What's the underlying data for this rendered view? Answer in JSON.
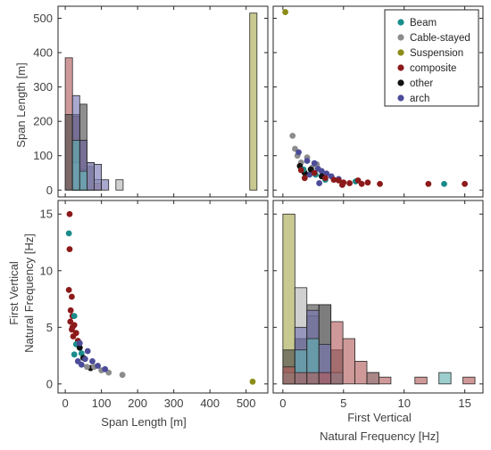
{
  "chart_data": [
    {
      "panel": "top-left",
      "type": "histogram",
      "xlim": [
        -20,
        560
      ],
      "ylim": [
        -20,
        535
      ],
      "x_ticks": [
        "0",
        "100",
        "200",
        "300",
        "400",
        "500"
      ],
      "x_tick_labels_shown": false,
      "y_ticks": [
        "0",
        "100",
        "200",
        "300",
        "400",
        "500"
      ],
      "ylabel": "Span Length [m]",
      "bin_width": 20,
      "bars": [
        {
          "series": "composite",
          "left": 0,
          "count": 385
        },
        {
          "series": "composite",
          "left": 20,
          "count": 215
        },
        {
          "series": "composite",
          "left": 40,
          "count": 145
        },
        {
          "series": "composite",
          "left": 60,
          "count": 65
        },
        {
          "series": "composite",
          "left": 80,
          "count": 20
        },
        {
          "series": "other",
          "left": 0,
          "count": 220
        },
        {
          "series": "other",
          "left": 20,
          "count": 220
        },
        {
          "series": "other",
          "left": 40,
          "count": 250
        },
        {
          "series": "other",
          "left": 60,
          "count": 70
        },
        {
          "series": "Cable-stayed",
          "left": 20,
          "count": 80
        },
        {
          "series": "Cable-stayed",
          "left": 40,
          "count": 60
        },
        {
          "series": "Cable-stayed",
          "left": 60,
          "count": 80
        },
        {
          "series": "Cable-stayed",
          "left": 80,
          "count": 30
        },
        {
          "series": "Cable-stayed",
          "left": 140,
          "count": 30
        },
        {
          "series": "arch",
          "left": 20,
          "count": 275
        },
        {
          "series": "arch",
          "left": 40,
          "count": 145
        },
        {
          "series": "arch",
          "left": 60,
          "count": 80
        },
        {
          "series": "arch",
          "left": 80,
          "count": 75
        },
        {
          "series": "arch",
          "left": 100,
          "count": 30
        },
        {
          "series": "Beam",
          "left": 20,
          "count": 145
        },
        {
          "series": "Beam",
          "left": 40,
          "count": 55
        },
        {
          "series": "Suspension",
          "left": 510,
          "count": 515
        }
      ]
    },
    {
      "panel": "top-right",
      "type": "scatter",
      "xlim": [
        -0.8,
        16.5
      ],
      "ylim": [
        -20,
        535
      ],
      "x_ticks": [
        "0",
        "5",
        "10",
        "15"
      ],
      "y_ticks": [
        "0",
        "100",
        "200",
        "300",
        "400",
        "500"
      ],
      "tick_labels_shown": false,
      "points": [
        {
          "series": "Suspension",
          "x": 0.2,
          "y": 518
        },
        {
          "series": "Cable-stayed",
          "x": 0.8,
          "y": 158
        },
        {
          "series": "Cable-stayed",
          "x": 1.0,
          "y": 120
        },
        {
          "series": "Cable-stayed",
          "x": 1.2,
          "y": 100
        },
        {
          "series": "Cable-stayed",
          "x": 1.5,
          "y": 80
        },
        {
          "series": "Cable-stayed",
          "x": 2.4,
          "y": 65
        },
        {
          "series": "Cable-stayed",
          "x": 2.8,
          "y": 75
        },
        {
          "series": "Cable-stayed",
          "x": 2.0,
          "y": 95
        },
        {
          "series": "arch",
          "x": 1.3,
          "y": 110
        },
        {
          "series": "arch",
          "x": 2.0,
          "y": 85
        },
        {
          "series": "arch",
          "x": 2.6,
          "y": 78
        },
        {
          "series": "arch",
          "x": 2.9,
          "y": 62
        },
        {
          "series": "arch",
          "x": 3.2,
          "y": 55
        },
        {
          "series": "arch",
          "x": 3.6,
          "y": 48
        },
        {
          "series": "arch",
          "x": 4.0,
          "y": 40
        },
        {
          "series": "arch",
          "x": 2.2,
          "y": 45
        },
        {
          "series": "arch",
          "x": 4.6,
          "y": 32
        },
        {
          "series": "arch",
          "x": 3.0,
          "y": 20
        },
        {
          "series": "other",
          "x": 1.4,
          "y": 70
        },
        {
          "series": "other",
          "x": 2.3,
          "y": 60
        },
        {
          "series": "other",
          "x": 3.2,
          "y": 40
        },
        {
          "series": "other",
          "x": 1.8,
          "y": 50
        },
        {
          "series": "Beam",
          "x": 1.7,
          "y": 60
        },
        {
          "series": "Beam",
          "x": 2.7,
          "y": 45
        },
        {
          "series": "Beam",
          "x": 3.5,
          "y": 30
        },
        {
          "series": "Beam",
          "x": 6.0,
          "y": 25
        },
        {
          "series": "Beam",
          "x": 13.3,
          "y": 18
        },
        {
          "series": "composite",
          "x": 1.5,
          "y": 58
        },
        {
          "series": "composite",
          "x": 1.8,
          "y": 35
        },
        {
          "series": "composite",
          "x": 2.6,
          "y": 50
        },
        {
          "series": "composite",
          "x": 3.5,
          "y": 35
        },
        {
          "series": "composite",
          "x": 4.2,
          "y": 30
        },
        {
          "series": "composite",
          "x": 4.6,
          "y": 28
        },
        {
          "series": "composite",
          "x": 5.0,
          "y": 22
        },
        {
          "series": "composite",
          "x": 5.5,
          "y": 20
        },
        {
          "series": "composite",
          "x": 6.2,
          "y": 28
        },
        {
          "series": "composite",
          "x": 6.5,
          "y": 18
        },
        {
          "series": "composite",
          "x": 7.0,
          "y": 22
        },
        {
          "series": "composite",
          "x": 8.0,
          "y": 18
        },
        {
          "series": "composite",
          "x": 12.0,
          "y": 18
        },
        {
          "series": "composite",
          "x": 15.0,
          "y": 18
        },
        {
          "series": "composite",
          "x": 4.9,
          "y": 15
        }
      ]
    },
    {
      "panel": "bottom-left",
      "type": "scatter",
      "xlim": [
        -20,
        560
      ],
      "ylim": [
        -0.8,
        16.2
      ],
      "x_ticks": [
        "0",
        "100",
        "200",
        "300",
        "400",
        "500"
      ],
      "y_ticks": [
        "0",
        "5",
        "10",
        "15"
      ],
      "xlabel": "Span Length [m]",
      "ylabel_lines": [
        "First Vertical",
        "Natural Frequency [Hz]"
      ],
      "points": [
        {
          "series": "composite",
          "x": 12,
          "y": 15.0
        },
        {
          "series": "Beam",
          "x": 10,
          "y": 13.3
        },
        {
          "series": "composite",
          "x": 12,
          "y": 11.9
        },
        {
          "series": "composite",
          "x": 10,
          "y": 8.3
        },
        {
          "series": "composite",
          "x": 18,
          "y": 7.7
        },
        {
          "series": "composite",
          "x": 15,
          "y": 6.5
        },
        {
          "series": "composite",
          "x": 20,
          "y": 6.0
        },
        {
          "series": "composite",
          "x": 14,
          "y": 5.5
        },
        {
          "series": "composite",
          "x": 25,
          "y": 5.2
        },
        {
          "series": "composite",
          "x": 18,
          "y": 4.8
        },
        {
          "series": "composite",
          "x": 30,
          "y": 4.5
        },
        {
          "series": "composite",
          "x": 22,
          "y": 4.2
        },
        {
          "series": "composite",
          "x": 35,
          "y": 3.8
        },
        {
          "series": "composite",
          "x": 20,
          "y": 5.0
        },
        {
          "series": "Beam",
          "x": 25,
          "y": 6.0
        },
        {
          "series": "Beam",
          "x": 30,
          "y": 3.5
        },
        {
          "series": "Beam",
          "x": 45,
          "y": 2.7
        },
        {
          "series": "Beam",
          "x": 25,
          "y": 2.6
        },
        {
          "series": "other",
          "x": 40,
          "y": 3.2
        },
        {
          "series": "other",
          "x": 50,
          "y": 2.3
        },
        {
          "series": "other",
          "x": 70,
          "y": 1.4
        },
        {
          "series": "Cable-stayed",
          "x": 60,
          "y": 1.5
        },
        {
          "series": "Cable-stayed",
          "x": 80,
          "y": 1.5
        },
        {
          "series": "Cable-stayed",
          "x": 100,
          "y": 1.2
        },
        {
          "series": "Cable-stayed",
          "x": 120,
          "y": 1.0
        },
        {
          "series": "Cable-stayed",
          "x": 158,
          "y": 0.8
        },
        {
          "series": "arch",
          "x": 35,
          "y": 2.0
        },
        {
          "series": "arch",
          "x": 45,
          "y": 1.7
        },
        {
          "series": "arch",
          "x": 55,
          "y": 2.2
        },
        {
          "series": "arch",
          "x": 62,
          "y": 2.9
        },
        {
          "series": "arch",
          "x": 75,
          "y": 2.0
        },
        {
          "series": "arch",
          "x": 90,
          "y": 1.6
        },
        {
          "series": "arch",
          "x": 110,
          "y": 1.3
        },
        {
          "series": "arch",
          "x": 40,
          "y": 3.6
        },
        {
          "series": "Suspension",
          "x": 518,
          "y": 0.2
        }
      ]
    },
    {
      "panel": "bottom-right",
      "type": "histogram",
      "xlim": [
        -0.8,
        16.5
      ],
      "ylim": [
        -0.8,
        16.2
      ],
      "x_ticks": [
        "0",
        "5",
        "10",
        "15"
      ],
      "y_ticks": [
        "0",
        "5",
        "10",
        "15"
      ],
      "y_tick_labels_shown": false,
      "xlabel_lines": [
        "First Vertical",
        "Natural Frequency [Hz]"
      ],
      "bin_width": 0.99,
      "bars": [
        {
          "series": "Suspension",
          "left": 0.0,
          "count": 15
        },
        {
          "series": "other",
          "left": 0.0,
          "count": 3
        },
        {
          "series": "Beam",
          "left": 0.0,
          "count": 1
        },
        {
          "series": "Cable-stayed",
          "left": 0.99,
          "count": 8.5
        },
        {
          "series": "Cable-stayed",
          "left": 1.98,
          "count": 6.0
        },
        {
          "series": "Cable-stayed",
          "left": 2.97,
          "count": 7.0
        },
        {
          "series": "other",
          "left": 0.99,
          "count": 4.0
        },
        {
          "series": "other",
          "left": 1.98,
          "count": 7.0
        },
        {
          "series": "other",
          "left": 2.97,
          "count": 7.0
        },
        {
          "series": "other",
          "left": 3.96,
          "count": 3.0
        },
        {
          "series": "arch",
          "left": 0.99,
          "count": 5.0
        },
        {
          "series": "arch",
          "left": 1.98,
          "count": 6.5
        },
        {
          "series": "arch",
          "left": 2.97,
          "count": 3.5
        },
        {
          "series": "arch",
          "left": 3.96,
          "count": 1.0
        },
        {
          "series": "Beam",
          "left": 0.99,
          "count": 3.0
        },
        {
          "series": "Beam",
          "left": 1.98,
          "count": 4.0
        },
        {
          "series": "Beam",
          "left": 3.96,
          "count": 1.0
        },
        {
          "series": "Beam",
          "left": 6.93,
          "count": 1.0
        },
        {
          "series": "Beam",
          "left": 12.87,
          "count": 1.0
        },
        {
          "series": "composite",
          "left": 0.0,
          "count": 1.5
        },
        {
          "series": "composite",
          "left": 0.99,
          "count": 1.0
        },
        {
          "series": "composite",
          "left": 1.98,
          "count": 1.0
        },
        {
          "series": "composite",
          "left": 2.97,
          "count": 1.0
        },
        {
          "series": "composite",
          "left": 3.96,
          "count": 5.5
        },
        {
          "series": "composite",
          "left": 4.95,
          "count": 4.0
        },
        {
          "series": "composite",
          "left": 5.94,
          "count": 2.0
        },
        {
          "series": "composite",
          "left": 6.93,
          "count": 1.0
        },
        {
          "series": "composite",
          "left": 7.92,
          "count": 0.6
        },
        {
          "series": "composite",
          "left": 10.89,
          "count": 0.6
        },
        {
          "series": "composite",
          "left": 14.85,
          "count": 0.6
        }
      ]
    }
  ],
  "legend": {
    "placement": "top-right",
    "entries": [
      {
        "label": "Beam",
        "color": "#1a8c8c"
      },
      {
        "label": "Cable-stayed",
        "color": "#8c8c8c"
      },
      {
        "label": "Suspension",
        "color": "#8c8c1a"
      },
      {
        "label": "composite",
        "color": "#8c1a1a"
      },
      {
        "label": "other",
        "color": "#111111"
      },
      {
        "label": "arch",
        "color": "#4c4c99"
      }
    ]
  },
  "colors": {
    "Beam": "#1a8c8c",
    "Cable-stayed": "#8c8c8c",
    "Suspension": "#8c8c1a",
    "composite": "#8c1a1a",
    "other": "#111111",
    "arch": "#4c4c99"
  },
  "bar_fills": {
    "Beam": "#5fb0b0",
    "Cable-stayed": "#b3b3b3",
    "Suspension": "#a6a64d",
    "composite": "#b35a5a",
    "other": "#4a4a4a",
    "arch": "#7575b3"
  }
}
